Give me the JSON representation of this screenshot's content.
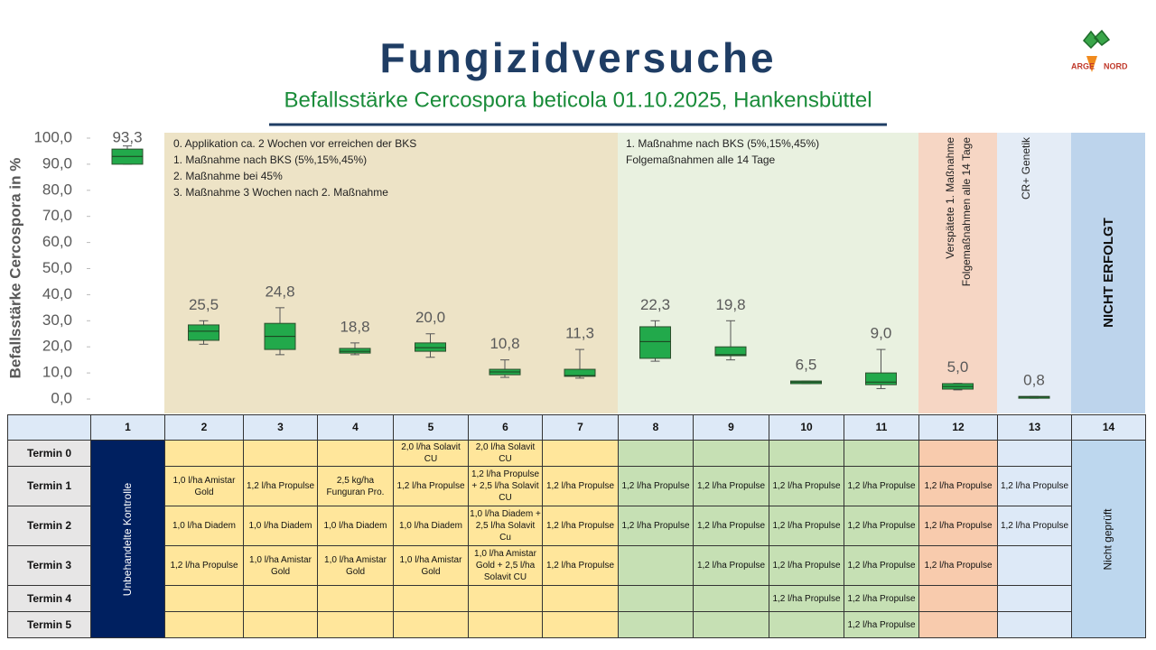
{
  "header": {
    "title": "Fungizidversuche",
    "subtitle": "Befallsstärke Cercospora beticola 01.10.2025, Hankensbüttel",
    "logo": [
      "ARGE",
      "NORD"
    ]
  },
  "chart_data": {
    "type": "box",
    "y_label": "Befallsstärke Cercospora in %",
    "categories": [
      "1",
      "2",
      "3",
      "4",
      "5",
      "6",
      "7",
      "8",
      "9",
      "10",
      "11",
      "12",
      "13",
      "14"
    ],
    "values": [
      93.3,
      25.5,
      24.8,
      18.8,
      20.0,
      10.8,
      11.3,
      22.3,
      19.8,
      6.5,
      9.0,
      5.0,
      0.8,
      null
    ],
    "value_labels": [
      "93,3",
      "25,5",
      "24,8",
      "18,8",
      "20,0",
      "10,8",
      "11,3",
      "22,3",
      "19,8",
      "6,5",
      "9,0",
      "5,0",
      "0,8",
      null
    ],
    "box": {
      "low": [
        90,
        21,
        17,
        17,
        16,
        8.3,
        8,
        14.5,
        15,
        5.9,
        4,
        3.5,
        0.3,
        null
      ],
      "q1": [
        90,
        22.5,
        19,
        17.6,
        18.3,
        9.3,
        8.7,
        15.6,
        16.6,
        5.9,
        5.5,
        3.8,
        0.3,
        null
      ],
      "median": [
        93,
        26,
        24,
        18.3,
        19.7,
        10.4,
        9,
        22,
        17,
        6.5,
        6.5,
        4.8,
        0.8,
        null
      ],
      "q3": [
        95.8,
        28.4,
        29,
        19.4,
        21.5,
        11.4,
        11.4,
        27.7,
        20,
        6.9,
        10,
        5.9,
        1,
        null
      ],
      "high": [
        97,
        30,
        35,
        21.5,
        25,
        15,
        19,
        30,
        30,
        6.9,
        19,
        6,
        1,
        null
      ]
    },
    "color": "#22a94b",
    "ylim": [
      0,
      100
    ],
    "yticks": [
      {
        "value": 0,
        "label": "0,0"
      },
      {
        "value": 10,
        "label": "10,0"
      },
      {
        "value": 20,
        "label": "20,0"
      },
      {
        "value": 30,
        "label": "30,0"
      },
      {
        "value": 40,
        "label": "40,0"
      },
      {
        "value": 50,
        "label": "50,0"
      },
      {
        "value": 60,
        "label": "60,0"
      },
      {
        "value": 70,
        "label": "70,0"
      },
      {
        "value": 80,
        "label": "80,0"
      },
      {
        "value": 90,
        "label": "90,0"
      },
      {
        "value": 100,
        "label": "100,0"
      }
    ],
    "annotations": [
      [
        "0. Applikation ca. 2 Wochen vor erreichen der BKS",
        "1. Maßnahme nach BKS (5%,15%,45%)",
        "2. Maßnahme bei 45%",
        "3. Maßnahme 3 Wochen nach 2. Maßnahme"
      ],
      [
        "1. Maßnahme nach BKS (5%,15%,45%)",
        "Folgemaßnahmen alle 14 Tage"
      ],
      [
        "Verspätete 1. Maßnahme",
        "Folgemaßnahmen alle 14 Tage"
      ],
      [
        "CR+ Genetik"
      ],
      [
        "NICHT ERFOLGT"
      ]
    ]
  },
  "table": {
    "control": "Unbehandelte Kontrolle",
    "not_tested": "Nicht geprüft",
    "rows": [
      {
        "label": "Termin 0",
        "cells": [
          null,
          null,
          null,
          "2,0 l/ha Solavit CU",
          "2,0 l/ha Solavit CU",
          null,
          null,
          null,
          null,
          null,
          null,
          null
        ]
      },
      {
        "label": "Termin 1",
        "cells": [
          "1,0 l/ha Amistar Gold",
          "1,2 l/ha Propulse",
          "2,5 kg/ha Funguran Pro.",
          "1,2 l/ha Propulse",
          "1,2 l/ha Propulse + 2,5 l/ha Solavit CU",
          "1,2 l/ha Propulse",
          "1,2 l/ha Propulse",
          "1,2 l/ha Propulse",
          "1,2 l/ha Propulse",
          "1,2 l/ha Propulse",
          "1,2 l/ha Propulse",
          "1,2 l/ha Propulse"
        ]
      },
      {
        "label": "Termin 2",
        "cells": [
          "1,0 l/ha Diadem",
          "1,0 l/ha Diadem",
          "1,0 l/ha Diadem",
          "1,0 l/ha Diadem",
          "1,0 l/ha Diadem + 2,5 l/ha Solavit Cu",
          "1,2 l/ha Propulse",
          "1,2 l/ha Propulse",
          "1,2 l/ha Propulse",
          "1,2 l/ha Propulse",
          "1,2 l/ha Propulse",
          "1,2 l/ha Propulse",
          "1,2 l/ha Propulse"
        ]
      },
      {
        "label": "Termin 3",
        "cells": [
          "1,2 l/ha Propulse",
          "1,0 l/ha Amistar Gold",
          "1,0 l/ha Amistar Gold",
          "1,0 l/ha Amistar Gold",
          "1,0 l/ha Amistar Gold + 2,5 l/ha Solavit CU",
          "1,2 l/ha Propulse",
          null,
          "1,2 l/ha Propulse",
          "1,2 l/ha Propulse",
          "1,2 l/ha Propulse",
          "1,2 l/ha Propulse",
          null
        ]
      },
      {
        "label": "Termin 4",
        "cells": [
          null,
          null,
          null,
          null,
          null,
          null,
          null,
          null,
          "1,2 l/ha Propulse",
          "1,2 l/ha Propulse",
          null,
          null
        ]
      },
      {
        "label": "Termin 5",
        "cells": [
          null,
          null,
          null,
          null,
          null,
          null,
          null,
          null,
          null,
          "1,2 l/ha Propulse",
          null,
          null
        ]
      }
    ]
  }
}
